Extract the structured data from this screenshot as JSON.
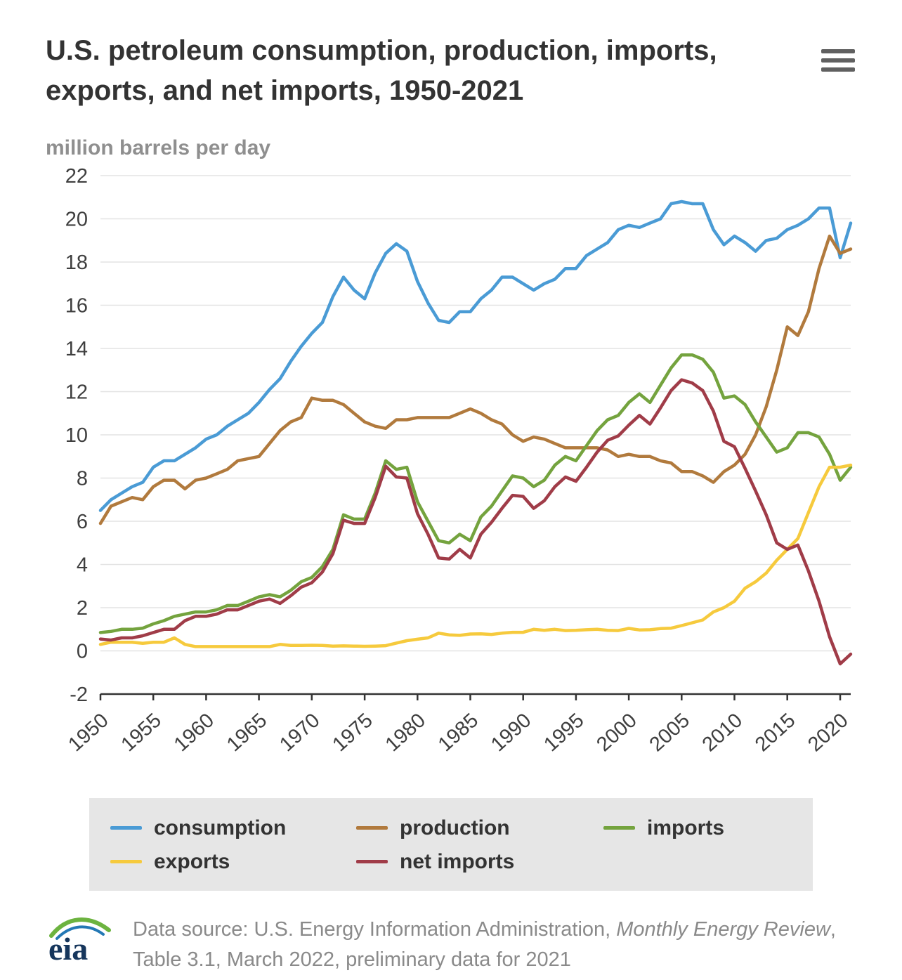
{
  "header": {
    "title": "U.S. petroleum consumption, production, imports, exports, and net imports, 1950-2021"
  },
  "subtitle": "million barrels per day",
  "chart_data": {
    "type": "line",
    "title": "U.S. petroleum consumption, production, imports, exports, and net imports, 1950-2021",
    "ylabel": "million barrels per day",
    "ylim": [
      -2,
      22
    ],
    "ytick_step": 2,
    "grid": "horizontal",
    "legend_position": "bottom",
    "axis_color": "#333333",
    "gridline_color": "#e3e3e3",
    "xticks": [
      1950,
      1955,
      1960,
      1965,
      1970,
      1975,
      1980,
      1985,
      1990,
      1995,
      2000,
      2005,
      2010,
      2015,
      2020
    ],
    "x": [
      1950,
      1951,
      1952,
      1953,
      1954,
      1955,
      1956,
      1957,
      1958,
      1959,
      1960,
      1961,
      1962,
      1963,
      1964,
      1965,
      1966,
      1967,
      1968,
      1969,
      1970,
      1971,
      1972,
      1973,
      1974,
      1975,
      1976,
      1977,
      1978,
      1979,
      1980,
      1981,
      1982,
      1983,
      1984,
      1985,
      1986,
      1987,
      1988,
      1989,
      1990,
      1991,
      1992,
      1993,
      1994,
      1995,
      1996,
      1997,
      1998,
      1999,
      2000,
      2001,
      2002,
      2003,
      2004,
      2005,
      2006,
      2007,
      2008,
      2009,
      2010,
      2011,
      2012,
      2013,
      2014,
      2015,
      2016,
      2017,
      2018,
      2019,
      2020,
      2021
    ],
    "series": [
      {
        "name": "consumption",
        "color": "#4a9bd5",
        "values": [
          6.5,
          7.0,
          7.3,
          7.6,
          7.8,
          8.5,
          8.8,
          8.8,
          9.1,
          9.4,
          9.8,
          10.0,
          10.4,
          10.7,
          11.0,
          11.5,
          12.1,
          12.6,
          13.4,
          14.1,
          14.7,
          15.2,
          16.4,
          17.3,
          16.7,
          16.3,
          17.5,
          18.4,
          18.85,
          18.5,
          17.1,
          16.1,
          15.3,
          15.2,
          15.7,
          15.7,
          16.3,
          16.7,
          17.3,
          17.3,
          17.0,
          16.7,
          17.0,
          17.2,
          17.7,
          17.7,
          18.3,
          18.6,
          18.9,
          19.5,
          19.7,
          19.6,
          19.8,
          20.0,
          20.7,
          20.8,
          20.7,
          20.7,
          19.5,
          18.8,
          19.2,
          18.9,
          18.5,
          19.0,
          19.1,
          19.5,
          19.7,
          20.0,
          20.5,
          20.5,
          18.2,
          19.8
        ]
      },
      {
        "name": "production",
        "color": "#b17a3d",
        "values": [
          5.9,
          6.7,
          6.9,
          7.1,
          7.0,
          7.6,
          7.9,
          7.9,
          7.5,
          7.9,
          8.0,
          8.2,
          8.4,
          8.8,
          8.9,
          9.0,
          9.6,
          10.2,
          10.6,
          10.8,
          11.7,
          11.6,
          11.6,
          11.4,
          11.0,
          10.6,
          10.4,
          10.3,
          10.7,
          10.7,
          10.8,
          10.8,
          10.8,
          10.8,
          11.0,
          11.2,
          11.0,
          10.7,
          10.5,
          10.0,
          9.7,
          9.9,
          9.8,
          9.6,
          9.4,
          9.4,
          9.4,
          9.4,
          9.3,
          9.0,
          9.1,
          9.0,
          9.0,
          8.8,
          8.7,
          8.3,
          8.3,
          8.1,
          7.8,
          8.3,
          8.6,
          9.1,
          10.0,
          11.3,
          13.0,
          15.0,
          14.6,
          15.7,
          17.7,
          19.2,
          18.4,
          18.6
        ]
      },
      {
        "name": "imports",
        "color": "#74a33e",
        "values": [
          0.85,
          0.9,
          1.0,
          1.0,
          1.05,
          1.25,
          1.4,
          1.6,
          1.7,
          1.8,
          1.8,
          1.9,
          2.1,
          2.1,
          2.3,
          2.5,
          2.6,
          2.5,
          2.8,
          3.2,
          3.4,
          3.9,
          4.7,
          6.3,
          6.1,
          6.1,
          7.3,
          8.8,
          8.4,
          8.5,
          6.9,
          6.0,
          5.1,
          5.0,
          5.4,
          5.1,
          6.2,
          6.7,
          7.4,
          8.1,
          8.0,
          7.6,
          7.9,
          8.6,
          9.0,
          8.8,
          9.5,
          10.2,
          10.7,
          10.9,
          11.5,
          11.9,
          11.5,
          12.3,
          13.1,
          13.7,
          13.7,
          13.5,
          12.9,
          11.7,
          11.8,
          11.4,
          10.6,
          9.9,
          9.2,
          9.4,
          10.1,
          10.1,
          9.9,
          9.1,
          7.9,
          8.5
        ]
      },
      {
        "name": "exports",
        "color": "#f6ca3d",
        "values": [
          0.3,
          0.4,
          0.4,
          0.4,
          0.35,
          0.4,
          0.4,
          0.6,
          0.3,
          0.2,
          0.2,
          0.2,
          0.2,
          0.2,
          0.2,
          0.2,
          0.2,
          0.3,
          0.25,
          0.25,
          0.26,
          0.25,
          0.22,
          0.23,
          0.22,
          0.21,
          0.22,
          0.24,
          0.36,
          0.47,
          0.54,
          0.6,
          0.82,
          0.74,
          0.72,
          0.78,
          0.79,
          0.76,
          0.82,
          0.86,
          0.86,
          1.0,
          0.95,
          1.0,
          0.94,
          0.95,
          0.98,
          1.0,
          0.95,
          0.94,
          1.04,
          0.97,
          0.98,
          1.03,
          1.05,
          1.17,
          1.3,
          1.43,
          1.8,
          2.0,
          2.3,
          2.9,
          3.2,
          3.6,
          4.2,
          4.7,
          5.2,
          6.4,
          7.6,
          8.5,
          8.5,
          8.6
        ]
      },
      {
        "name": "net imports",
        "color": "#a03c48",
        "values": [
          0.55,
          0.5,
          0.6,
          0.6,
          0.7,
          0.85,
          1.0,
          1.0,
          1.4,
          1.6,
          1.6,
          1.7,
          1.9,
          1.9,
          2.1,
          2.3,
          2.4,
          2.2,
          2.55,
          2.95,
          3.15,
          3.65,
          4.5,
          6.05,
          5.9,
          5.9,
          7.1,
          8.55,
          8.05,
          8.0,
          6.35,
          5.4,
          4.3,
          4.25,
          4.7,
          4.3,
          5.4,
          5.95,
          6.6,
          7.2,
          7.15,
          6.6,
          6.95,
          7.6,
          8.05,
          7.85,
          8.5,
          9.2,
          9.75,
          9.95,
          10.45,
          10.9,
          10.5,
          11.25,
          12.05,
          12.55,
          12.4,
          12.05,
          11.1,
          9.7,
          9.45,
          8.45,
          7.4,
          6.3,
          5.0,
          4.7,
          4.9,
          3.7,
          2.3,
          0.65,
          -0.6,
          -0.15
        ]
      }
    ]
  },
  "footer": {
    "text_part1": "Data source: U.S. Energy Information Administration, ",
    "text_part2": "Monthly Energy Review",
    "text_part3": ", Table 3.1, March 2022, preliminary data for 2021"
  }
}
